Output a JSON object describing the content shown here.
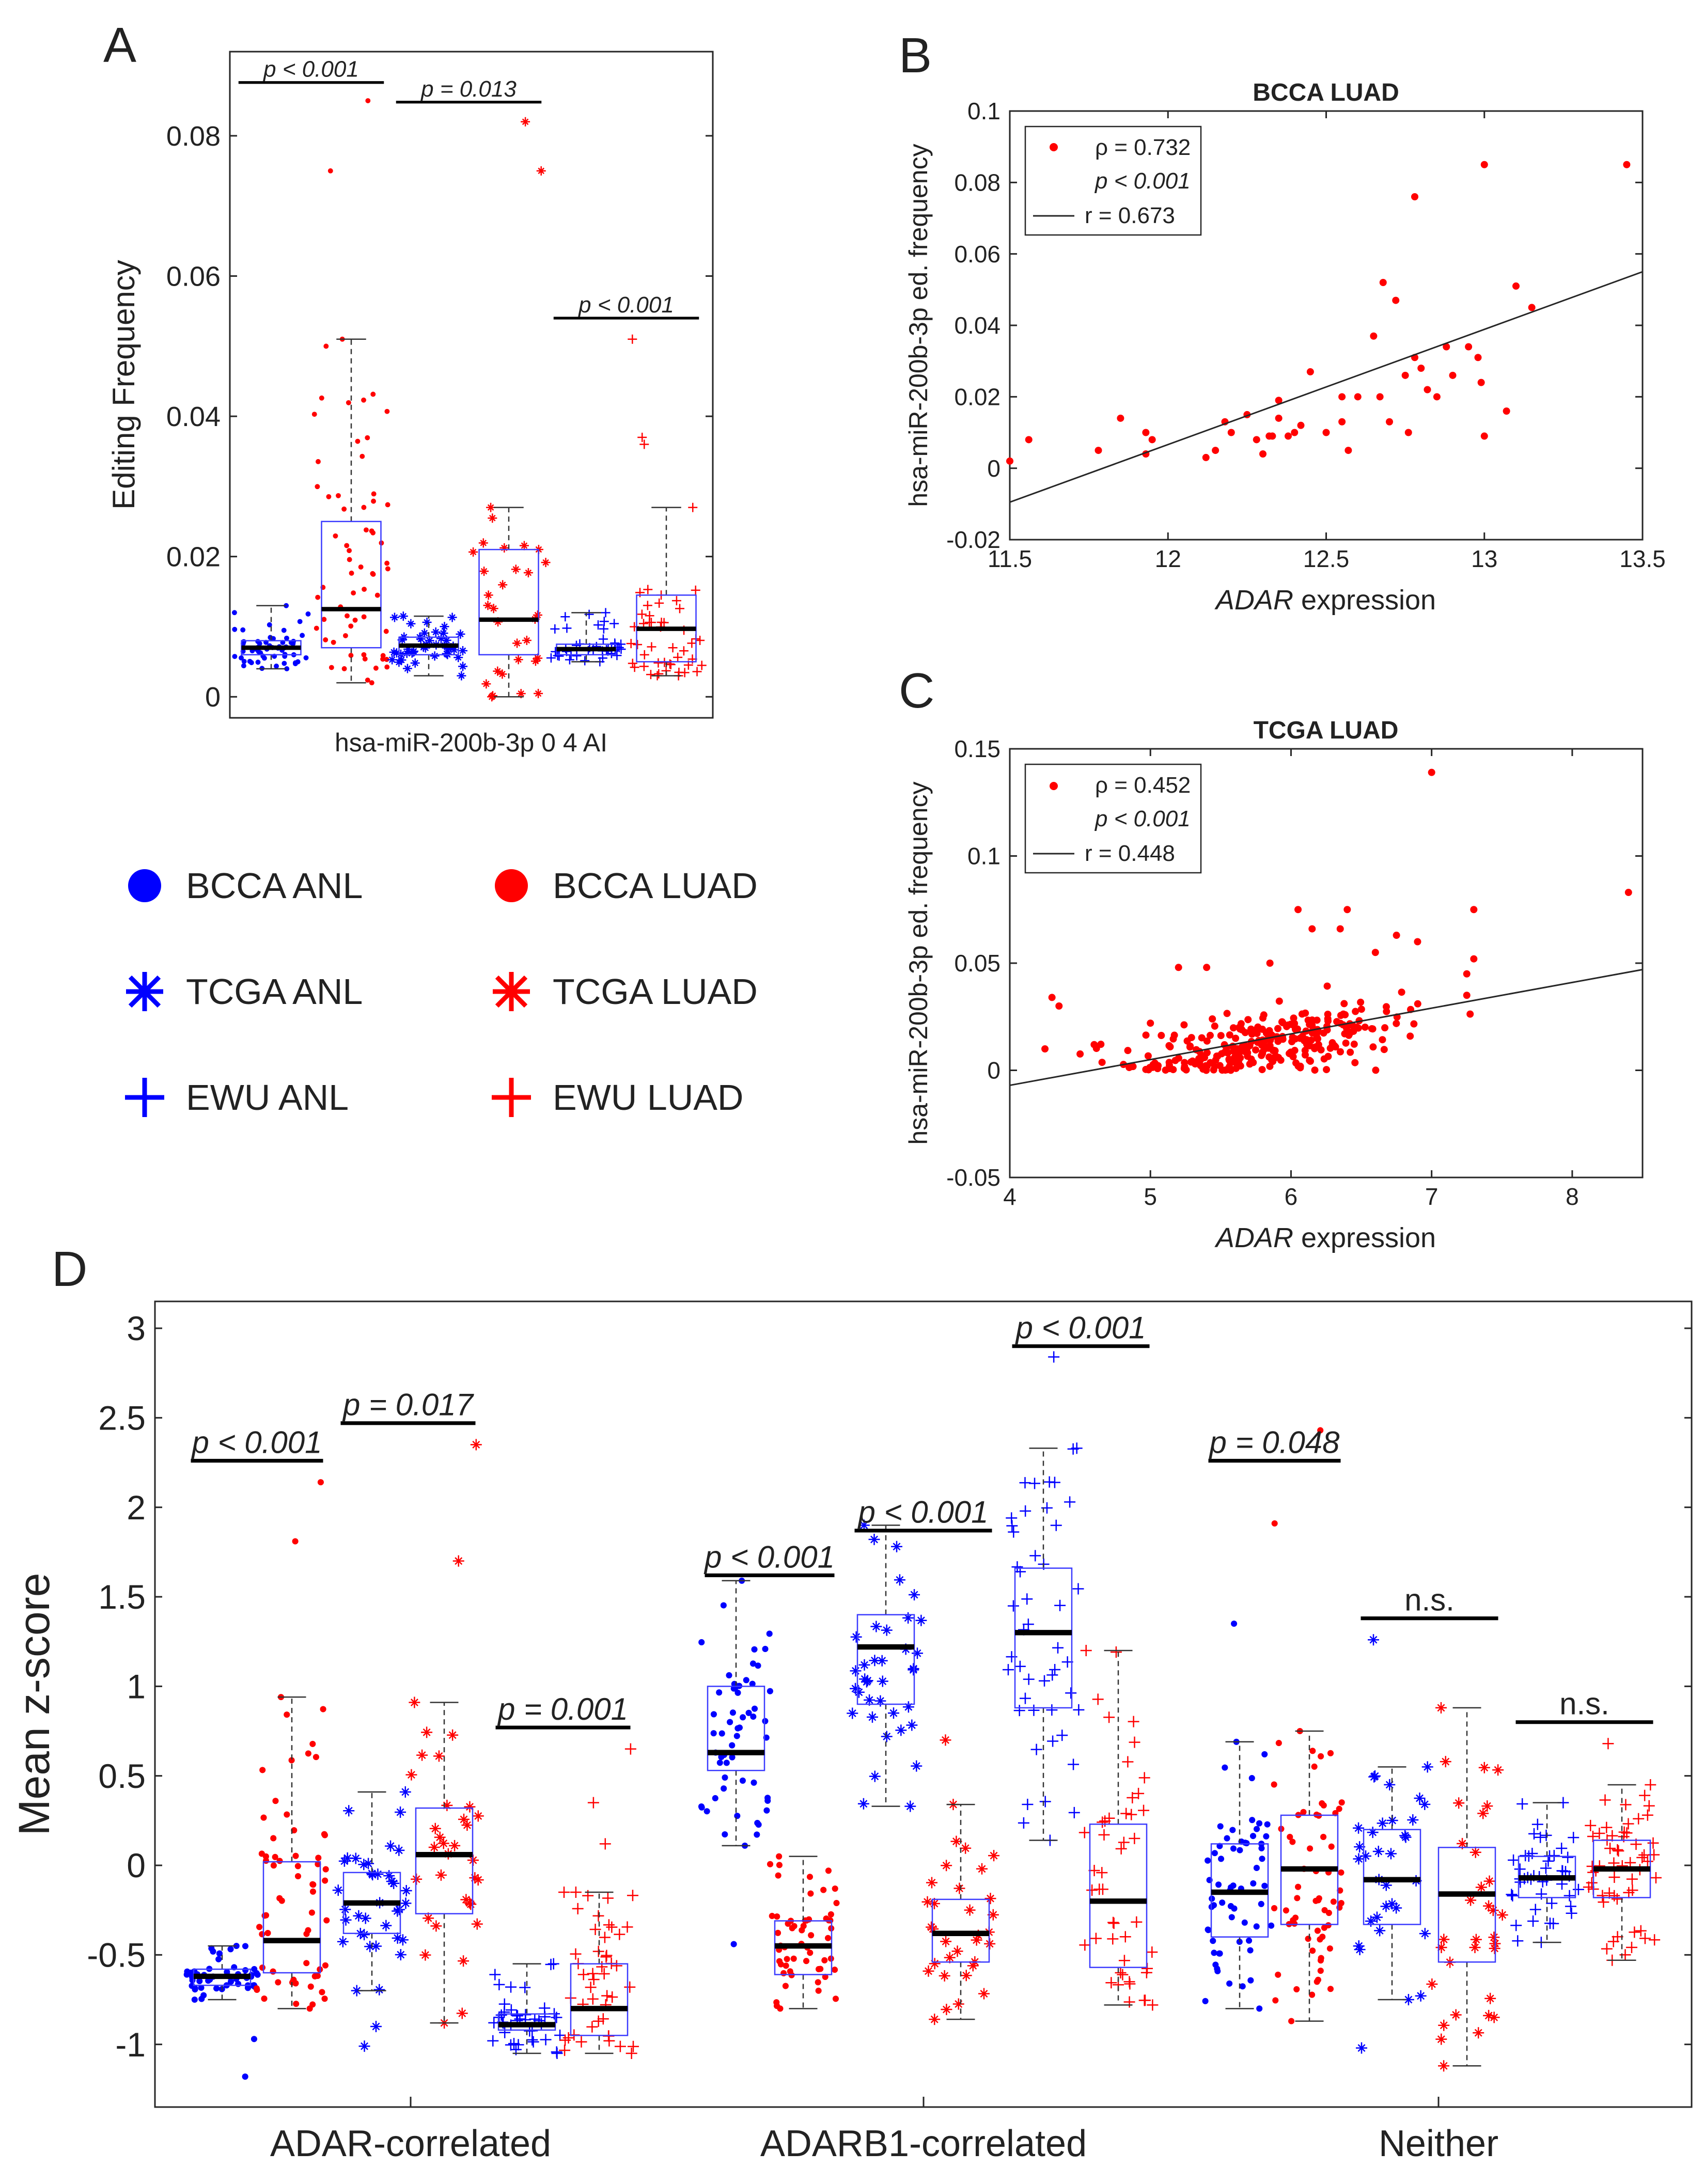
{
  "figure": {
    "panel_labels": [
      "A",
      "B",
      "C",
      "D"
    ],
    "legend": [
      {
        "label": "BCCA ANL",
        "color": "#0000ff",
        "marker": "dot"
      },
      {
        "label": "BCCA LUAD",
        "color": "#ff0000",
        "marker": "dot"
      },
      {
        "label": "TCGA ANL",
        "color": "#0000ff",
        "marker": "star"
      },
      {
        "label": "TCGA LUAD",
        "color": "#ff0000",
        "marker": "star"
      },
      {
        "label": "EWU ANL",
        "color": "#0000ff",
        "marker": "plus"
      },
      {
        "label": "EWU LUAD",
        "color": "#ff0000",
        "marker": "plus"
      }
    ]
  },
  "chart_data": [
    {
      "id": "A",
      "type": "box",
      "title": "",
      "xlabel": "hsa-miR-200b-3p 0 4 AI",
      "ylabel": "Editing Frequency",
      "ylim": [
        -0.003,
        0.092
      ],
      "yticks": [
        0,
        0.02,
        0.04,
        0.06,
        0.08
      ],
      "ytick_labels": [
        "0",
        "0.02",
        "0.04",
        "0.06",
        "0.08"
      ],
      "boxes": [
        {
          "group": "BCCA ANL",
          "color": "#0000ff",
          "marker": "dot",
          "min": 0.004,
          "q1": 0.006,
          "median": 0.007,
          "q3": 0.008,
          "max": 0.013,
          "n": 55
        },
        {
          "group": "BCCA LUAD",
          "color": "#ff0000",
          "marker": "dot",
          "min": 0.002,
          "q1": 0.007,
          "median": 0.0125,
          "q3": 0.025,
          "max": 0.051,
          "n": 60,
          "outliers": [
            0.075,
            0.085
          ]
        },
        {
          "group": "TCGA ANL",
          "color": "#0000ff",
          "marker": "star",
          "min": 0.003,
          "q1": 0.006,
          "median": 0.0073,
          "q3": 0.0085,
          "max": 0.0115,
          "n": 45
        },
        {
          "group": "TCGA LUAD",
          "color": "#ff0000",
          "marker": "star",
          "min": 0.0,
          "q1": 0.006,
          "median": 0.011,
          "q3": 0.021,
          "max": 0.027,
          "n": 28,
          "outliers": [
            0.075,
            0.082
          ]
        },
        {
          "group": "EWU ANL",
          "color": "#0000ff",
          "marker": "plus",
          "min": 0.005,
          "q1": 0.006,
          "median": 0.0068,
          "q3": 0.0075,
          "max": 0.012,
          "n": 40
        },
        {
          "group": "EWU LUAD",
          "color": "#ff0000",
          "marker": "plus",
          "min": 0.003,
          "q1": 0.005,
          "median": 0.0097,
          "q3": 0.0145,
          "max": 0.027,
          "n": 45,
          "outliers": [
            0.036,
            0.037,
            0.051
          ]
        }
      ],
      "significance": [
        {
          "boxes": [
            0,
            1
          ],
          "label": "p < 0.001",
          "y": 0.0876
        },
        {
          "boxes": [
            2,
            3
          ],
          "label": "p = 0.013",
          "y": 0.0848
        },
        {
          "boxes": [
            4,
            5
          ],
          "label": "p < 0.001",
          "y": 0.054
        }
      ]
    },
    {
      "id": "B",
      "type": "scatter",
      "title": "BCCA LUAD",
      "xlabel_italic": "ADAR",
      "xlabel_rest": " expression",
      "ylabel": "hsa-miR-200b-3p ed. frequency",
      "xlim": [
        11.5,
        13.5
      ],
      "ylim": [
        -0.02,
        0.1
      ],
      "xticks": [
        11.5,
        12,
        12.5,
        13,
        13.5
      ],
      "xtick_labels": [
        "11.5",
        "12",
        "12.5",
        "13",
        "13.5"
      ],
      "yticks": [
        -0.02,
        0,
        0.02,
        0.04,
        0.06,
        0.08,
        0.1
      ],
      "ytick_labels": [
        "-0.02",
        "0",
        "0.02",
        "0.04",
        "0.06",
        "0.08",
        "0.1"
      ],
      "legend": {
        "rho_label": "ρ = 0.732",
        "p_label": "p < 0.001",
        "r_label": "r = 0.673"
      },
      "fit": {
        "x": [
          11.5,
          13.5
        ],
        "y": [
          -0.0095,
          0.055
        ]
      },
      "points": [
        [
          11.5,
          0.002
        ],
        [
          11.56,
          0.008
        ],
        [
          11.78,
          0.005
        ],
        [
          11.85,
          0.014
        ],
        [
          11.93,
          0.01
        ],
        [
          11.93,
          0.004
        ],
        [
          11.95,
          0.008
        ],
        [
          12.12,
          0.003
        ],
        [
          12.15,
          0.005
        ],
        [
          12.18,
          0.013
        ],
        [
          12.2,
          0.01
        ],
        [
          12.25,
          0.015
        ],
        [
          12.28,
          0.008
        ],
        [
          12.3,
          0.004
        ],
        [
          12.32,
          0.009
        ],
        [
          12.33,
          0.009
        ],
        [
          12.35,
          0.019
        ],
        [
          12.35,
          0.014
        ],
        [
          12.38,
          0.009
        ],
        [
          12.4,
          0.01
        ],
        [
          12.42,
          0.012
        ],
        [
          12.45,
          0.027
        ],
        [
          12.5,
          0.01
        ],
        [
          12.55,
          0.02
        ],
        [
          12.55,
          0.013
        ],
        [
          12.57,
          0.005
        ],
        [
          12.6,
          0.02
        ],
        [
          12.65,
          0.037
        ],
        [
          12.67,
          0.02
        ],
        [
          12.68,
          0.052
        ],
        [
          12.7,
          0.013
        ],
        [
          12.72,
          0.047
        ],
        [
          12.75,
          0.026
        ],
        [
          12.76,
          0.01
        ],
        [
          12.78,
          0.031
        ],
        [
          12.78,
          0.076
        ],
        [
          12.8,
          0.028
        ],
        [
          12.82,
          0.022
        ],
        [
          12.85,
          0.02
        ],
        [
          12.88,
          0.034
        ],
        [
          12.9,
          0.026
        ],
        [
          12.95,
          0.034
        ],
        [
          12.98,
          0.031
        ],
        [
          12.99,
          0.024
        ],
        [
          13.0,
          0.009
        ],
        [
          13.0,
          0.085
        ],
        [
          13.07,
          0.016
        ],
        [
          13.1,
          0.051
        ],
        [
          13.15,
          0.045
        ],
        [
          13.45,
          0.085
        ]
      ]
    },
    {
      "id": "C",
      "type": "scatter",
      "title": "TCGA LUAD",
      "xlabel_italic": "ADAR",
      "xlabel_rest": " expression",
      "ylabel": "hsa-miR-200b-3p ed. frequency",
      "xlim": [
        4,
        8.5
      ],
      "ylim": [
        -0.05,
        0.15
      ],
      "xticks": [
        4,
        5,
        6,
        7,
        8
      ],
      "xtick_labels": [
        "4",
        "5",
        "6",
        "7",
        "8"
      ],
      "yticks": [
        -0.05,
        0,
        0.05,
        0.1,
        0.15
      ],
      "ytick_labels": [
        "-0.05",
        "0",
        "0.05",
        "0.1",
        "0.15"
      ],
      "legend": {
        "rho_label": "ρ = 0.452",
        "p_label": "p < 0.001",
        "r_label": "r = 0.448"
      },
      "fit": {
        "x": [
          4,
          8.5
        ],
        "y": [
          -0.007,
          0.047
        ]
      },
      "points": [
        [
          4.3,
          0.034
        ],
        [
          4.35,
          0.03
        ],
        [
          4.25,
          0.01
        ],
        [
          7.0,
          0.139
        ],
        [
          8.4,
          0.083
        ],
        [
          7.3,
          0.075
        ],
        [
          6.05,
          0.075
        ],
        [
          6.4,
          0.075
        ],
        [
          6.15,
          0.066
        ],
        [
          6.35,
          0.066
        ],
        [
          6.75,
          0.063
        ],
        [
          6.9,
          0.06
        ],
        [
          7.25,
          0.035
        ],
        [
          7.25,
          0.045
        ],
        [
          7.3,
          0.052
        ],
        [
          5.2,
          0.048
        ],
        [
          5.4,
          0.048
        ],
        [
          5.85,
          0.05
        ],
        [
          6.6,
          0.055
        ],
        [
          4.6,
          0.012
        ],
        [
          5.0,
          0.022
        ]
      ],
      "cloud": {
        "n": 300,
        "x_mean": 5.8,
        "x_sd": 0.45,
        "intercept": -0.058,
        "slope": 0.012,
        "noise_sd": 0.008
      }
    },
    {
      "id": "D",
      "type": "box",
      "xlabel": "",
      "ylabel": "Mean z-score",
      "ylim": [
        -1.35,
        3.15
      ],
      "yticks": [
        -1,
        -0.5,
        0,
        0.5,
        1,
        1.5,
        2,
        2.5,
        3
      ],
      "ytick_labels": [
        "-1",
        "-0.5",
        "0",
        "0.5",
        "1",
        "1.5",
        "2",
        "2.5",
        "3"
      ],
      "group_labels": [
        "ADAR-correlated",
        "ADARB1-correlated",
        "Neither"
      ],
      "boxes": [
        {
          "group": "BCCA ANL",
          "color": "#0000ff",
          "marker": "dot",
          "min": -0.75,
          "q1": -0.67,
          "median": -0.62,
          "q3": -0.58,
          "max": -0.45,
          "n": 50,
          "outliers": [
            -0.97,
            -1.18
          ]
        },
        {
          "group": "BCCA LUAD",
          "color": "#ff0000",
          "marker": "dot",
          "min": -0.8,
          "q1": -0.6,
          "median": -0.42,
          "q3": 0.02,
          "max": 0.94,
          "n": 60,
          "outliers": [
            1.81,
            2.14
          ]
        },
        {
          "group": "TCGA ANL",
          "color": "#0000ff",
          "marker": "star",
          "min": -0.7,
          "q1": -0.38,
          "median": -0.21,
          "q3": -0.04,
          "max": 0.41,
          "n": 35,
          "outliers": [
            -0.9,
            -1.01
          ]
        },
        {
          "group": "TCGA LUAD",
          "color": "#ff0000",
          "marker": "star",
          "min": -0.88,
          "q1": -0.27,
          "median": 0.06,
          "q3": 0.32,
          "max": 0.91,
          "n": 30,
          "outliers": [
            1.7,
            2.35
          ]
        },
        {
          "group": "EWU ANL",
          "color": "#0000ff",
          "marker": "plus",
          "min": -1.05,
          "q1": -0.92,
          "median": -0.89,
          "q3": -0.83,
          "max": -0.55,
          "n": 40
        },
        {
          "group": "EWU LUAD",
          "color": "#ff0000",
          "marker": "plus",
          "min": -1.05,
          "q1": -0.95,
          "median": -0.8,
          "q3": -0.55,
          "max": -0.15,
          "n": 45,
          "outliers": [
            0.12,
            0.35,
            0.65
          ]
        },
        {
          "group": "BCCA ANL",
          "color": "#0000ff",
          "marker": "dot",
          "min": 0.11,
          "q1": 0.53,
          "median": 0.63,
          "q3": 1.0,
          "max": 1.59,
          "n": 55,
          "outliers": [
            -0.44
          ]
        },
        {
          "group": "BCCA LUAD",
          "color": "#ff0000",
          "marker": "dot",
          "min": -0.8,
          "q1": -0.61,
          "median": -0.45,
          "q3": -0.31,
          "max": 0.05,
          "n": 55
        },
        {
          "group": "TCGA ANL",
          "color": "#0000ff",
          "marker": "star",
          "min": 0.33,
          "q1": 0.9,
          "median": 1.22,
          "q3": 1.4,
          "max": 1.9,
          "n": 35
        },
        {
          "group": "TCGA LUAD",
          "color": "#ff0000",
          "marker": "star",
          "min": -0.86,
          "q1": -0.54,
          "median": -0.38,
          "q3": -0.19,
          "max": 0.34,
          "n": 30,
          "outliers": [
            0.7
          ]
        },
        {
          "group": "EWU ANL",
          "color": "#0000ff",
          "marker": "plus",
          "min": 0.14,
          "q1": 0.88,
          "median": 1.3,
          "q3": 1.66,
          "max": 2.33,
          "n": 45,
          "outliers": [
            2.84
          ]
        },
        {
          "group": "EWU LUAD",
          "color": "#ff0000",
          "marker": "plus",
          "min": -0.78,
          "q1": -0.57,
          "median": -0.2,
          "q3": 0.23,
          "max": 1.2,
          "n": 45
        },
        {
          "group": "BCCA ANL",
          "color": "#0000ff",
          "marker": "dot",
          "min": -0.8,
          "q1": -0.4,
          "median": -0.15,
          "q3": 0.12,
          "max": 0.69,
          "n": 60,
          "outliers": [
            1.35
          ]
        },
        {
          "group": "BCCA LUAD",
          "color": "#ff0000",
          "marker": "dot",
          "min": -0.87,
          "q1": -0.33,
          "median": -0.02,
          "q3": 0.28,
          "max": 0.75,
          "n": 60,
          "outliers": [
            1.91,
            2.43
          ]
        },
        {
          "group": "TCGA ANL",
          "color": "#0000ff",
          "marker": "star",
          "min": -0.75,
          "q1": -0.33,
          "median": -0.08,
          "q3": 0.2,
          "max": 0.55,
          "n": 30,
          "outliers": [
            -1.02,
            1.26
          ]
        },
        {
          "group": "TCGA LUAD",
          "color": "#ff0000",
          "marker": "star",
          "min": -1.12,
          "q1": -0.54,
          "median": -0.16,
          "q3": 0.1,
          "max": 0.88,
          "n": 30
        },
        {
          "group": "EWU ANL",
          "color": "#0000ff",
          "marker": "plus",
          "min": -0.43,
          "q1": -0.18,
          "median": -0.07,
          "q3": 0.05,
          "max": 0.35,
          "n": 45
        },
        {
          "group": "EWU LUAD",
          "color": "#ff0000",
          "marker": "plus",
          "min": -0.53,
          "q1": -0.18,
          "median": -0.02,
          "q3": 0.14,
          "max": 0.45,
          "n": 55,
          "outliers": [
            0.68
          ]
        }
      ],
      "significance": [
        {
          "boxes": [
            0,
            1
          ],
          "label": "p < 0.001",
          "y": 2.26
        },
        {
          "boxes": [
            2,
            3
          ],
          "label": "p = 0.017",
          "y": 2.47
        },
        {
          "boxes": [
            4,
            5
          ],
          "label": "p = 0.001",
          "y": 0.77
        },
        {
          "boxes": [
            6,
            7
          ],
          "label": "p < 0.001",
          "y": 1.62
        },
        {
          "boxes": [
            8,
            9
          ],
          "label": "p < 0.001",
          "y": 1.87
        },
        {
          "boxes": [
            10,
            11
          ],
          "label": "p < 0.001",
          "y": 2.9
        },
        {
          "boxes": [
            12,
            13
          ],
          "label": "p = 0.048",
          "y": 2.26
        },
        {
          "boxes": [
            14,
            15
          ],
          "label": "n.s.",
          "y": 1.38
        },
        {
          "boxes": [
            16,
            17
          ],
          "label": "n.s.",
          "y": 0.8
        }
      ]
    }
  ]
}
